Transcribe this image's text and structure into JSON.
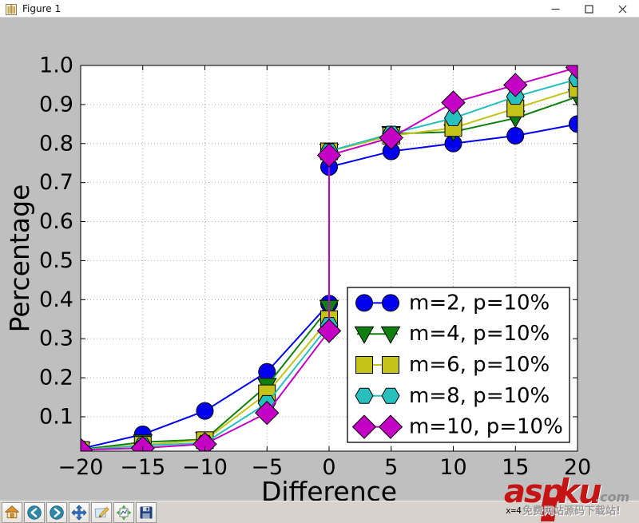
{
  "window": {
    "title": "Figure 1",
    "controls": {
      "minimize": "minimize",
      "maximize": "maximize",
      "close": "close"
    }
  },
  "toolbar": {
    "buttons": [
      {
        "icon": "home-icon"
      },
      {
        "icon": "back-icon"
      },
      {
        "icon": "forward-icon"
      },
      {
        "icon": "pan-icon"
      },
      {
        "icon": "zoom-edit-icon"
      },
      {
        "icon": "configure-subplots-icon"
      },
      {
        "icon": "save-icon"
      }
    ],
    "status": "x=4"
  },
  "watermark": {
    "brand_asp": "asp",
    "brand_ku": "ku",
    "brand_tld": ".com",
    "tagline": "免费网站源码下载站!"
  },
  "chart_data": {
    "type": "line",
    "title": "",
    "xlabel": "Difference",
    "ylabel": "Percentage",
    "xlim": [
      -20,
      20
    ],
    "ylim": [
      0.012,
      1.0
    ],
    "xticks": [
      -20,
      -15,
      -10,
      -5,
      0,
      5,
      10,
      15,
      20
    ],
    "yticks": [
      0.1,
      0.2,
      0.3,
      0.4,
      0.5,
      0.6,
      0.7,
      0.8,
      0.9,
      1.0
    ],
    "grid": true,
    "legend_position": "lower right",
    "x": [
      -20,
      -15,
      -10,
      -5,
      0,
      0,
      5,
      10,
      15,
      20
    ],
    "series": [
      {
        "name": "m=2, p=10%",
        "color": "#0000ee",
        "marker": "circle",
        "values": [
          0.018,
          0.055,
          0.115,
          0.215,
          0.39,
          0.74,
          0.78,
          0.8,
          0.82,
          0.85
        ]
      },
      {
        "name": "m=4, p=10%",
        "color": "#0e800e",
        "marker": "triangle_down",
        "values": [
          0.016,
          0.035,
          0.042,
          0.18,
          0.38,
          0.78,
          0.825,
          0.83,
          0.865,
          0.92
        ]
      },
      {
        "name": "m=6, p=10%",
        "color": "#c3c318",
        "marker": "square",
        "values": [
          0.015,
          0.028,
          0.04,
          0.16,
          0.35,
          0.78,
          0.82,
          0.84,
          0.89,
          0.94
        ]
      },
      {
        "name": "m=8, p=10%",
        "color": "#28bfbf",
        "marker": "hexagon",
        "values": [
          0.015,
          0.026,
          0.033,
          0.135,
          0.335,
          0.78,
          0.825,
          0.865,
          0.92,
          0.965
        ]
      },
      {
        "name": "m=10, p=10%",
        "color": "#c400c4",
        "marker": "diamond",
        "values": [
          0.015,
          0.02,
          0.03,
          0.11,
          0.32,
          0.77,
          0.815,
          0.905,
          0.95,
          0.995
        ]
      }
    ]
  }
}
